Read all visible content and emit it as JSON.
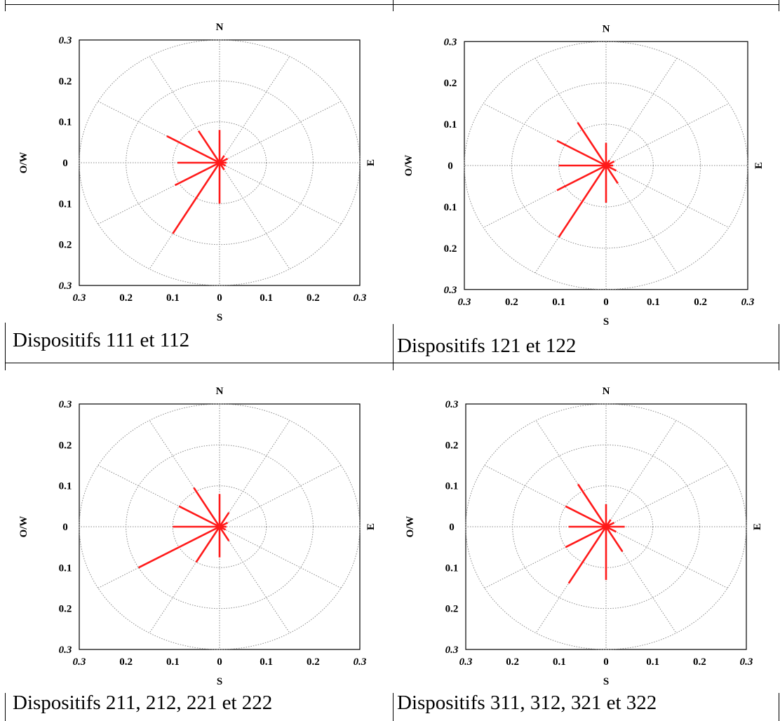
{
  "chart_data": [
    {
      "type": "polar-rose",
      "caption": "Dispositifs 111 et 112",
      "labels": {
        "north": "N",
        "south": "S",
        "east": "E",
        "west": "O/W"
      },
      "rmax": 0.3,
      "radial_ticks": [
        "0.3",
        "0.2",
        "0.1",
        "0",
        "0.1",
        "0.2",
        "0.3"
      ],
      "grid": true,
      "directions_deg": [
        0,
        30,
        60,
        90,
        120,
        150,
        180,
        210,
        240,
        270,
        300,
        330
      ],
      "values": [
        0.08,
        0.02,
        0.02,
        0.015,
        0.015,
        0.02,
        0.1,
        0.2,
        0.11,
        0.09,
        0.13,
        0.09
      ],
      "color": "#ff1a1a"
    },
    {
      "type": "polar-rose",
      "caption": "Dispositifs 121 et 122",
      "labels": {
        "north": "N",
        "south": "S",
        "east": "E",
        "west": "O/W"
      },
      "rmax": 0.3,
      "radial_ticks": [
        "0.3",
        "0.2",
        "0.1",
        "0",
        "0.1",
        "0.2",
        "0.3"
      ],
      "grid": true,
      "directions_deg": [
        0,
        30,
        60,
        90,
        120,
        150,
        180,
        210,
        240,
        270,
        300,
        330
      ],
      "values": [
        0.055,
        0.015,
        0.02,
        0.015,
        0.025,
        0.05,
        0.09,
        0.2,
        0.12,
        0.1,
        0.12,
        0.12
      ],
      "color": "#ff1a1a"
    },
    {
      "type": "polar-rose",
      "caption": "Dispositifs 211, 212, 221 et 222",
      "labels": {
        "north": "N",
        "south": "S",
        "east": "E",
        "west": "O/W"
      },
      "rmax": 0.3,
      "radial_ticks": [
        "0.3",
        "0.2",
        "0.1",
        "0",
        "0.1",
        "0.2",
        "0.3"
      ],
      "grid": true,
      "directions_deg": [
        0,
        30,
        60,
        90,
        120,
        150,
        180,
        210,
        240,
        270,
        300,
        330
      ],
      "values": [
        0.08,
        0.04,
        0.02,
        0.015,
        0.015,
        0.04,
        0.075,
        0.1,
        0.2,
        0.1,
        0.1,
        0.11
      ],
      "color": "#ff1a1a"
    },
    {
      "type": "polar-rose",
      "caption": "Dispositifs 311, 312, 321 et 322",
      "labels": {
        "north": "N",
        "south": "S",
        "east": "E",
        "west": "O/W"
      },
      "rmax": 0.3,
      "radial_ticks": [
        "0.3",
        "0.2",
        "0.1",
        "0",
        "0.1",
        "0.2",
        "0.3"
      ],
      "grid": true,
      "directions_deg": [
        0,
        30,
        60,
        90,
        120,
        150,
        180,
        210,
        240,
        270,
        300,
        330
      ],
      "values": [
        0.055,
        0.02,
        0.02,
        0.04,
        0.025,
        0.07,
        0.13,
        0.16,
        0.1,
        0.08,
        0.1,
        0.12
      ],
      "color": "#ff1a1a"
    }
  ]
}
